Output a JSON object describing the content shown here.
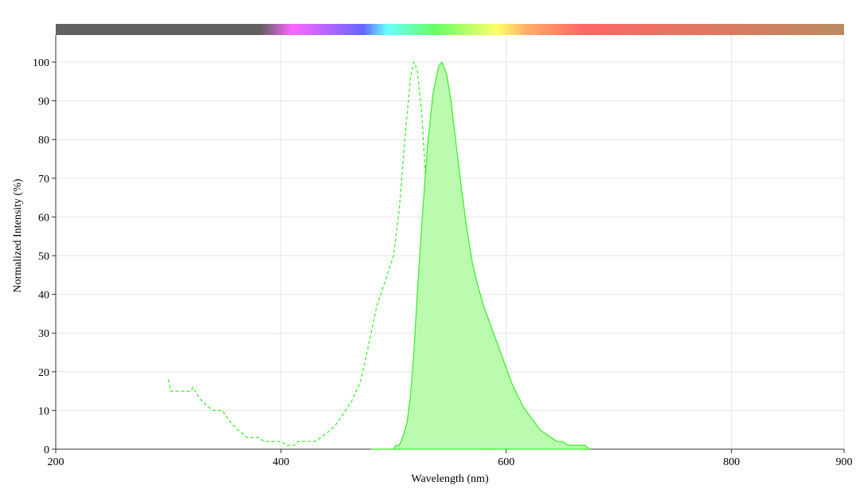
{
  "chart_data": {
    "type": "line",
    "xlabel": "Wavelength (nm)",
    "ylabel": "Normalized Intensity (%)",
    "xlim": [
      200,
      900
    ],
    "xticks": [
      200,
      400,
      600,
      800,
      900
    ],
    "ylim": [
      0,
      107
    ],
    "yticks": [
      0,
      10,
      20,
      30,
      40,
      50,
      60,
      70,
      80,
      90,
      100
    ],
    "grid": true,
    "series": [
      {
        "color": "#33ee22",
        "dashed": true,
        "filled": false,
        "x": [
          300,
          302,
          320,
          322,
          328,
          335,
          340,
          348,
          355,
          362,
          370,
          380,
          385,
          400,
          405,
          412,
          415,
          430,
          440,
          448,
          455,
          462,
          470,
          475,
          480,
          485,
          492,
          500,
          505,
          510,
          515,
          518,
          521,
          525,
          530,
          535,
          540,
          545,
          550,
          555,
          560,
          565,
          575,
          580,
          590
        ],
        "values": [
          18,
          15,
          15,
          16,
          13,
          11,
          10,
          10,
          7,
          5,
          3,
          3,
          2,
          2,
          1,
          1,
          2,
          2,
          4,
          6,
          9,
          12,
          17,
          23,
          30,
          37,
          43,
          50,
          62,
          80,
          96,
          100,
          98,
          87,
          62,
          45,
          30,
          18,
          10,
          5,
          2,
          1,
          1,
          0,
          0
        ]
      },
      {
        "color": "#33ee22",
        "dashed": false,
        "filled": true,
        "fill": "#bbfbb0",
        "x": [
          480,
          500,
          502,
          505,
          508,
          512,
          515,
          518,
          521,
          525,
          530,
          535,
          540,
          543,
          547,
          551,
          555,
          560,
          565,
          570,
          575,
          580,
          585,
          590,
          595,
          600,
          605,
          610,
          615,
          620,
          625,
          630,
          635,
          640,
          645,
          650,
          655,
          660,
          670,
          674
        ],
        "values": [
          0,
          0,
          1,
          1,
          3,
          7,
          14,
          25,
          40,
          58,
          78,
          92,
          99,
          100,
          97,
          90,
          80,
          68,
          57,
          48,
          42,
          37,
          33,
          29,
          25,
          21,
          17,
          14,
          11,
          9,
          7,
          5,
          4,
          3,
          2,
          2,
          1,
          1,
          1,
          0
        ]
      }
    ]
  }
}
